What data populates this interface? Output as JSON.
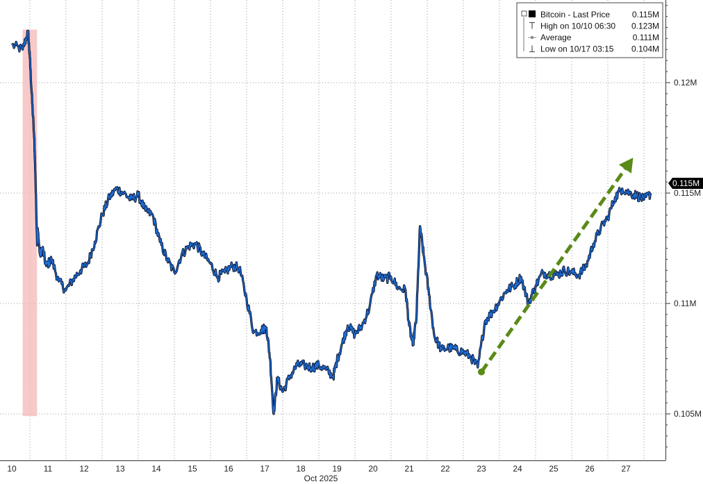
{
  "chart_data": {
    "type": "line",
    "title": "",
    "xlabel": "Oct 2025",
    "ylabel": "",
    "xlim": [
      10,
      27.9
    ],
    "ylim": [
      0.1028,
      0.1242
    ],
    "y_ticks": [
      {
        "value": 0.105,
        "label": "0.105M"
      },
      {
        "value": 0.11,
        "label": "0.11M"
      },
      {
        "value": 0.115,
        "label": "0.115M"
      },
      {
        "value": 0.12,
        "label": "0.12M"
      }
    ],
    "x_ticks": [
      {
        "value": 10,
        "label": "10"
      },
      {
        "value": 11,
        "label": "11"
      },
      {
        "value": 12,
        "label": "12"
      },
      {
        "value": 13,
        "label": "13"
      },
      {
        "value": 14,
        "label": "14"
      },
      {
        "value": 15,
        "label": "15"
      },
      {
        "value": 16,
        "label": "16"
      },
      {
        "value": 17,
        "label": "17"
      },
      {
        "value": 18,
        "label": "18"
      },
      {
        "value": 19,
        "label": "19"
      },
      {
        "value": 20,
        "label": "20"
      },
      {
        "value": 21,
        "label": "21"
      },
      {
        "value": 22,
        "label": "22"
      },
      {
        "value": 23,
        "label": "23"
      },
      {
        "value": 24,
        "label": "24"
      },
      {
        "value": 25,
        "label": "25"
      },
      {
        "value": 26,
        "label": "26"
      },
      {
        "value": 27,
        "label": "27"
      }
    ],
    "grid": true,
    "series": [
      {
        "name": "Bitcoin - Last Price",
        "color": "#1f6fd6",
        "x": [
          10.0,
          10.3,
          10.45,
          10.5,
          10.55,
          10.62,
          10.65,
          10.7,
          10.72,
          10.78,
          10.85,
          10.95,
          11.1,
          11.3,
          11.5,
          11.7,
          11.9,
          12.1,
          12.3,
          12.5,
          12.7,
          12.9,
          13.1,
          13.3,
          13.5,
          13.7,
          13.9,
          14.1,
          14.3,
          14.5,
          14.7,
          14.9,
          15.1,
          15.3,
          15.5,
          15.7,
          15.9,
          16.1,
          16.3,
          16.5,
          16.7,
          16.9,
          17.05,
          17.15,
          17.25,
          17.35,
          17.5,
          17.7,
          17.9,
          18.1,
          18.3,
          18.5,
          18.7,
          18.9,
          19.0,
          19.15,
          19.3,
          19.5,
          19.7,
          19.9,
          20.1,
          20.3,
          20.5,
          20.7,
          20.9,
          21.0,
          21.1,
          21.2,
          21.3,
          21.4,
          21.55,
          21.7,
          21.9,
          22.1,
          22.3,
          22.5,
          22.7,
          22.9,
          23.1,
          23.3,
          23.5,
          23.7,
          23.9,
          24.1,
          24.3,
          24.5,
          24.7,
          24.9,
          25.1,
          25.3,
          25.5,
          25.7,
          25.9,
          26.1,
          26.3,
          26.5,
          26.7,
          26.9,
          27.1,
          27.3,
          27.5,
          27.7
        ],
        "y": [
          0.1217,
          0.1215,
          0.1223,
          0.1211,
          0.1195,
          0.1175,
          0.116,
          0.1128,
          0.1133,
          0.1122,
          0.1125,
          0.1117,
          0.112,
          0.111,
          0.1106,
          0.1111,
          0.1115,
          0.1118,
          0.1128,
          0.114,
          0.1148,
          0.1152,
          0.115,
          0.1147,
          0.1149,
          0.1142,
          0.114,
          0.1128,
          0.112,
          0.1114,
          0.1122,
          0.1126,
          0.1127,
          0.1122,
          0.1118,
          0.1112,
          0.1114,
          0.1117,
          0.1116,
          0.1102,
          0.1087,
          0.1088,
          0.1089,
          0.1075,
          0.105,
          0.1066,
          0.106,
          0.1067,
          0.1072,
          0.1072,
          0.1071,
          0.1072,
          0.107,
          0.1067,
          0.1074,
          0.1082,
          0.109,
          0.1086,
          0.109,
          0.1098,
          0.1113,
          0.1111,
          0.1112,
          0.1107,
          0.1106,
          0.109,
          0.1081,
          0.1093,
          0.1135,
          0.1122,
          0.1104,
          0.1085,
          0.1079,
          0.108,
          0.1079,
          0.1078,
          0.1076,
          0.1071,
          0.1092,
          0.1096,
          0.1101,
          0.1106,
          0.1108,
          0.1112,
          0.11,
          0.1108,
          0.1114,
          0.1113,
          0.1113,
          0.1115,
          0.1114,
          0.1113,
          0.1117,
          0.1127,
          0.1134,
          0.1139,
          0.1148,
          0.1152,
          0.115,
          0.1149,
          0.1147,
          0.115
        ],
        "drawn_values": "estimated"
      }
    ],
    "annotations": {
      "shaded_range": {
        "x0": 10.3,
        "x1": 10.7,
        "y0": 0.1049,
        "y1": 0.1224,
        "color": "#f5b7b7"
      },
      "trend_arrow": {
        "x0": 23.0,
        "y0": 0.1069,
        "x1": 27.2,
        "y1": 0.1166,
        "color": "#5a8a17"
      },
      "last_price_tag": {
        "value": 0.115,
        "label": "0.115M"
      }
    },
    "legend": {
      "placement": "top-right",
      "entries": [
        {
          "label": "Bitcoin - Last Price",
          "value": "0.115M",
          "marker": "square"
        },
        {
          "label": "High on 10/10 06:30",
          "value": "0.123M",
          "marker": "high-tick"
        },
        {
          "label": "Average",
          "value": "0.111M",
          "marker": "average"
        },
        {
          "label": "Low on 10/17 03:15",
          "value": "0.104M",
          "marker": "low-tick"
        }
      ]
    }
  }
}
